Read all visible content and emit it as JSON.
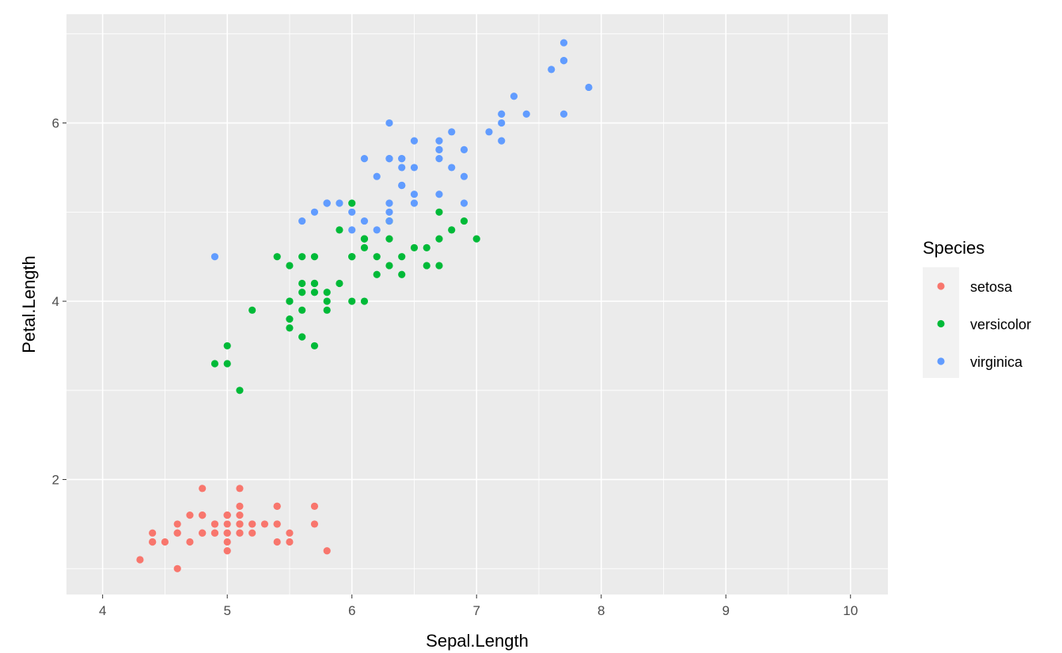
{
  "chart_data": {
    "type": "scatter",
    "title": "",
    "xlabel": "Sepal.Length",
    "ylabel": "Petal.Length",
    "xlim": [
      3.71,
      10.3
    ],
    "ylim": [
      0.71,
      7.22
    ],
    "x_ticks": [
      4,
      5,
      6,
      7,
      8,
      9,
      10
    ],
    "y_ticks": [
      2,
      4,
      6
    ],
    "x_tick_labels": [
      "4",
      "5",
      "6",
      "7",
      "8",
      "9",
      "10"
    ],
    "y_tick_labels": [
      "2",
      "4",
      "6"
    ],
    "grid": true,
    "panel_background": "#ebebeb",
    "legend": {
      "title": "Species",
      "placement": "right"
    },
    "series": [
      {
        "name": "setosa",
        "color": "#f8766d",
        "x": [
          5.1,
          4.9,
          4.7,
          4.6,
          5.0,
          5.4,
          4.6,
          5.0,
          4.4,
          4.9,
          5.4,
          4.8,
          4.8,
          4.3,
          5.8,
          5.7,
          5.4,
          5.1,
          5.7,
          5.1,
          5.4,
          5.1,
          4.6,
          5.1,
          4.8,
          5.0,
          5.0,
          5.2,
          5.2,
          4.7,
          4.8,
          5.4,
          5.2,
          5.5,
          4.9,
          5.0,
          5.5,
          4.9,
          4.4,
          5.1,
          5.0,
          4.5,
          4.4,
          5.0,
          5.1,
          4.8,
          5.1,
          4.6,
          5.3,
          5.0
        ],
        "y": [
          1.4,
          1.4,
          1.3,
          1.5,
          1.4,
          1.7,
          1.4,
          1.5,
          1.4,
          1.5,
          1.5,
          1.6,
          1.4,
          1.1,
          1.2,
          1.5,
          1.3,
          1.4,
          1.7,
          1.5,
          1.7,
          1.5,
          1.0,
          1.7,
          1.9,
          1.6,
          1.6,
          1.5,
          1.4,
          1.6,
          1.6,
          1.5,
          1.5,
          1.4,
          1.5,
          1.2,
          1.3,
          1.4,
          1.3,
          1.5,
          1.3,
          1.3,
          1.3,
          1.6,
          1.9,
          1.4,
          1.6,
          1.4,
          1.5,
          1.4
        ]
      },
      {
        "name": "versicolor",
        "color": "#00ba38",
        "x": [
          7.0,
          6.4,
          6.9,
          5.5,
          6.5,
          5.7,
          6.3,
          4.9,
          6.6,
          5.2,
          5.0,
          5.9,
          6.0,
          6.1,
          5.6,
          6.7,
          5.6,
          5.8,
          6.2,
          5.6,
          5.9,
          6.1,
          6.3,
          6.1,
          6.4,
          6.6,
          6.8,
          6.7,
          6.0,
          5.7,
          5.5,
          5.5,
          5.8,
          6.0,
          5.4,
          6.0,
          6.7,
          6.3,
          5.6,
          5.5,
          5.5,
          6.1,
          5.8,
          5.0,
          5.6,
          5.7,
          5.7,
          6.2,
          5.1,
          5.7
        ],
        "y": [
          4.7,
          4.5,
          4.9,
          4.0,
          4.6,
          4.5,
          4.7,
          3.3,
          4.6,
          3.9,
          3.5,
          4.2,
          4.0,
          4.7,
          3.6,
          4.4,
          4.5,
          4.1,
          4.5,
          3.9,
          4.8,
          4.0,
          4.9,
          4.7,
          4.3,
          4.4,
          4.8,
          5.0,
          4.5,
          3.5,
          3.8,
          3.7,
          3.9,
          5.1,
          4.5,
          4.5,
          4.7,
          4.4,
          4.1,
          4.0,
          4.4,
          4.6,
          4.0,
          3.3,
          4.2,
          4.2,
          4.2,
          4.3,
          3.0,
          4.1
        ]
      },
      {
        "name": "virginica",
        "color": "#619cff",
        "x": [
          6.3,
          5.8,
          7.1,
          6.3,
          6.5,
          7.6,
          4.9,
          7.3,
          6.7,
          7.2,
          6.5,
          6.4,
          6.8,
          5.7,
          5.8,
          6.4,
          6.5,
          7.7,
          7.7,
          6.0,
          6.9,
          5.6,
          7.7,
          6.3,
          6.7,
          7.2,
          6.2,
          6.1,
          6.4,
          7.2,
          7.4,
          7.9,
          6.4,
          6.3,
          6.1,
          7.7,
          6.3,
          6.4,
          6.0,
          6.9,
          6.7,
          6.9,
          5.8,
          6.8,
          6.7,
          6.7,
          6.3,
          6.5,
          6.2,
          5.9
        ],
        "y": [
          6.0,
          5.1,
          5.9,
          5.6,
          5.8,
          6.6,
          4.5,
          6.3,
          5.8,
          6.1,
          5.1,
          5.3,
          5.5,
          5.0,
          5.1,
          5.3,
          5.5,
          6.7,
          6.9,
          5.0,
          5.7,
          4.9,
          6.7,
          4.9,
          5.7,
          6.0,
          4.8,
          4.9,
          5.6,
          5.8,
          6.1,
          6.4,
          5.6,
          5.1,
          5.6,
          6.1,
          5.6,
          5.5,
          4.8,
          5.4,
          5.6,
          5.1,
          5.1,
          5.9,
          5.7,
          5.2,
          5.0,
          5.2,
          5.4,
          5.1
        ]
      }
    ]
  }
}
